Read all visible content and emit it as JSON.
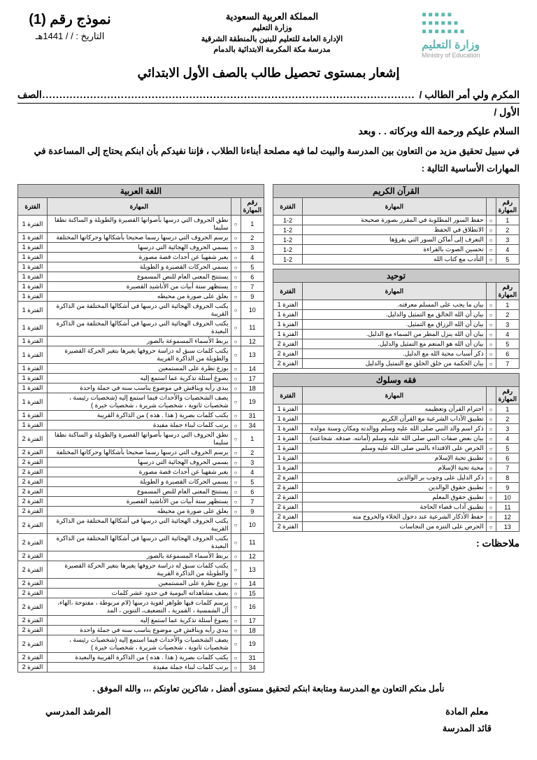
{
  "header": {
    "kingdom": "المملكة العربية السعودية",
    "ministry": "وزارة التعليم",
    "admin": "الإدارة العامة للتعليم للبنين بالمنطقة الشرقية",
    "school": "مدرسة مكة المكرمة الابتدائية بالدمام",
    "model": "نموذج رقم (1)",
    "date_label": "التاريخ :    /    / 1441هـ",
    "logo_ar": "وزارة التعليم",
    "logo_en": "Ministry of Education"
  },
  "title": "إشعار بمستوى تحصيل طالب بالصف الأول الابتدائي",
  "to_label": "المكرم ولي أمر الطالب /",
  "class_label": "الصف",
  "grade": "الأول /",
  "greeting": "السلام عليكم ورحمة الله وبركاته  .  .  وبعد",
  "intro": "في سبيل تحقيق مزيد من التعاون بين المدرسة والبيت لما فيه مصلحة أبناءنا الطلاب ، فإننا نفيدكم بأن ابنكم يحتاج إلى المساعدة في المهارات الأساسية التالية :",
  "col_headers": {
    "num": "رقم المهارة",
    "skill": "المهارة",
    "period": "الفترة"
  },
  "sections": {
    "quran": {
      "title": "القرآن الكريم",
      "rows": [
        {
          "n": "1",
          "s": "حفظ السور المطلوبة في المقرر بصورة صحيحة",
          "p": "1-2"
        },
        {
          "n": "2",
          "s": "الانطلاق في الحفظ",
          "p": "1-2"
        },
        {
          "n": "3",
          "s": "التعرف إلى أماكن السور التي يقرؤها",
          "p": "1-2"
        },
        {
          "n": "4",
          "s": "تحسين الصوت بالقراءة",
          "p": "1-2"
        },
        {
          "n": "5",
          "s": "التأدب مع كتاب الله",
          "p": "1-2"
        }
      ]
    },
    "tawheed": {
      "title": "توحيد",
      "rows": [
        {
          "n": "1",
          "s": "بيان ما يجب على المسلم معرفته.",
          "p": "الفترة 1"
        },
        {
          "n": "2",
          "s": "بيان أن الله الخالق مع التمثيل والدليل.",
          "p": "الفترة 1"
        },
        {
          "n": "3",
          "s": "بيان أن الله الرزاق مع التمثيل.",
          "p": "الفترة 1"
        },
        {
          "n": "4",
          "s": "بيان أن الله ينزل المطر من السماء مع الدليل.",
          "p": "الفترة 1"
        },
        {
          "n": "5",
          "s": "بيان أن الله هو المنعم مع التمثيل والدليل.",
          "p": "الفترة 2"
        },
        {
          "n": "6",
          "s": "ذكر أسباب محبة الله مع الدليل.",
          "p": "الفترة 2"
        },
        {
          "n": "7",
          "s": "بيان الحكمة من خلق الخلق مع التمثيل والدليل",
          "p": "الفترة 2"
        }
      ]
    },
    "fiqh": {
      "title": "فقه وسلوك",
      "rows": [
        {
          "n": "1",
          "s": "احترام القرآن وتعظيمه",
          "p": "الفترة 1"
        },
        {
          "n": "2",
          "s": "تطبيق الآداب الشرعية مع القرآن الكريم",
          "p": "الفترة 1"
        },
        {
          "n": "3",
          "s": "ذكر اسم والد النبي صلى الله عليه وسلم ووالدته ومكان وسنة مولده",
          "p": "الفترة 1"
        },
        {
          "n": "4",
          "s": "بيان بعض صفات النبي صلى الله عليه وسلم (أمانته. صدقه. شجاعته)",
          "p": "الفترة 1"
        },
        {
          "n": "5",
          "s": "الحرص على الاقتداء بالنبي صلى الله عليه وسلم",
          "p": "الفترة 1"
        },
        {
          "n": "6",
          "s": "تطبيق تحية الإسلام",
          "p": "الفترة 1"
        },
        {
          "n": "7",
          "s": "محبة تحية الإسلام",
          "p": "الفترة 1"
        },
        {
          "n": "8",
          "s": "ذكر الدليل على وجوب بر الوالدين",
          "p": "الفترة 2"
        },
        {
          "n": "9",
          "s": "تطبيق حقوق الوالدين",
          "p": "الفترة 2"
        },
        {
          "n": "10",
          "s": "تطبيق حقوق المعلم",
          "p": "الفترة 2"
        },
        {
          "n": "11",
          "s": "تطبيق آداب قضاء الحاجة",
          "p": "الفترة 2"
        },
        {
          "n": "12",
          "s": "حفظ الأذكار الشرعية عند دخول الخلاء والخروج منه",
          "p": "الفترة 2"
        },
        {
          "n": "13",
          "s": "الحرص على التنزه من النجاسات",
          "p": "الفترة 2"
        }
      ]
    },
    "arabic": {
      "title": "اللغة العربية",
      "rows": [
        {
          "n": "1",
          "s": "نطق الحروف التي درسها بأصواتها القصيرة والطويلة و الساكنة نطقا سليما",
          "p": "الفترة 1"
        },
        {
          "n": "2",
          "s": "يرسم الحروف التي درسها رسما صحيحا بأشكالها وحركاتها المختلفة",
          "p": "الفترة 1"
        },
        {
          "n": "3",
          "s": "يسمي الحروف الهجائية التي درسها",
          "p": "الفترة 1"
        },
        {
          "n": "4",
          "s": "يعبر شفهيا عن أحداث قصة مصورة",
          "p": "الفترة 1"
        },
        {
          "n": "5",
          "s": "يسمي الحركات القصيرة و الطويلة",
          "p": "الفترة 1"
        },
        {
          "n": "6",
          "s": "يستنتج المعنى العام للنص المسموع",
          "p": "الفترة 1"
        },
        {
          "n": "7",
          "s": "يستظهر ستة  أبيات من الأناشيد القصيرة",
          "p": "الفترة 1"
        },
        {
          "n": "9",
          "s": "يعلق على صورة من محيطه",
          "p": "الفترة 1"
        },
        {
          "n": "10",
          "s": "يكتب الحروف الهجائية التي درسها في أشكالها المختلفة من الذاكرة القريبة",
          "p": "الفترة 1"
        },
        {
          "n": "11",
          "s": "يكتب الحروف الهجائية التي درسها في أشكالها المختلفة من الذاكرة البعيدة",
          "p": "الفترة 1"
        },
        {
          "n": "12",
          "s": "يربط الأسماء المسموعة بالصور",
          "p": "الفترة 1"
        },
        {
          "n": "13",
          "s": "يكتب كلمات سبق له دراسة حروفها يغيرها بتغير الحركة القصيرة والطويلة من الذاكرة القريبة",
          "p": "الفترة 1"
        },
        {
          "n": "14",
          "s": "يوزع نظرة على المستمعين",
          "p": "الفترة 1"
        },
        {
          "n": "17",
          "s": "يصوغ أسئلة تذكرية عما استمع إليه",
          "p": "الفترة 1"
        },
        {
          "n": "18",
          "s": "يبدي رأيه ويناقش في موضوع يناسب سنه في جملة واحدة",
          "p": "الفترة 1"
        },
        {
          "n": "19",
          "s": "يصف الشخصيات والأحداث فيما استمع إليه (شخصيات رئيسة ، شخصيات ثانوية ، شخصيات شريرة ، شخصيات خيرة )",
          "p": "الفترة 1"
        },
        {
          "n": "31",
          "s": "يكتب كلمات بصرية ( هذا . هذه ) من الذاكرة القريبة",
          "p": "الفترة 1"
        },
        {
          "n": "34",
          "s": "يرتب كلمات لبناء جملة مفيدة",
          "p": "الفترة 1"
        },
        {
          "n": "1",
          "s": "نطق الحروف التي درسها بأصواتها القصيرة والطويلة و الساكنة نطقا سليما",
          "p": "الفترة 2"
        },
        {
          "n": "2",
          "s": "يرسم الحروف التي درسها رسما صحيحا بأشكالها وحركاتها المختلفة",
          "p": "الفترة 2"
        },
        {
          "n": "3",
          "s": "يسمي الحروف الهجائية التي درسها",
          "p": "الفترة 2"
        },
        {
          "n": "4",
          "s": "يعبر شفهيا عن أحداث قصة مصورة",
          "p": "الفترة 2"
        },
        {
          "n": "5",
          "s": "يسمي الحركات القصيرة و الطويلة",
          "p": "الفترة 2"
        },
        {
          "n": "6",
          "s": "يستنتج المعنى العام للنص المسموع",
          "p": "الفترة 2"
        },
        {
          "n": "7",
          "s": "يستظهر ستة  أبيات من الأناشيد القصيرة",
          "p": "الفترة 2"
        },
        {
          "n": "9",
          "s": "يعلق على صورة من محيطه",
          "p": "الفترة 2"
        },
        {
          "n": "10",
          "s": "يكتب الحروف الهجائية التي درسها في أشكالها المختلفة من الذاكرة القريبة",
          "p": "الفترة 2"
        },
        {
          "n": "11",
          "s": "يكتب الحروف الهجائية التي درسها في أشكالها المختلفة من الذاكرة البعيدة",
          "p": "الفترة 2"
        },
        {
          "n": "12",
          "s": "يربط الأسماء المسموعة بالصور",
          "p": "الفترة 2"
        },
        {
          "n": "13",
          "s": "يكتب كلمات سبق له دراسة حروفها يغيرها بتغير الحركة القصيرة والطويلة من الذاكرة القريبة",
          "p": "الفترة 2"
        },
        {
          "n": "14",
          "s": "يوزع نظرة على المستمعين",
          "p": "الفترة 2"
        },
        {
          "n": "15",
          "s": "يصف مشاهداته اليومية في حدود عشر كلمات",
          "p": "الفترة 2"
        },
        {
          "n": "16",
          "s": "يرسم كلمات فيها ظواهر لغوية درسها (لام مربوطة ، مفتوحة ،الهاء، أل الشمسية ، القمرية ، التضعيف، التنوين ، المد",
          "p": "الفترة 2"
        },
        {
          "n": "17",
          "s": "يصوغ أسئلة تذكرية عما استمع إليه",
          "p": "الفترة 2"
        },
        {
          "n": "18",
          "s": "يبدي رأيه ويناقش في موضوع يناسب سنه في جملة واحدة",
          "p": "الفترة 2"
        },
        {
          "n": "19",
          "s": "يصف الشخصيات والأحداث فيما استمع إليه (شخصيات رئيسة ، شخصيات ثانوية ، شخصيات شريرة ، شخصيات خيرة )",
          "p": "الفترة 2"
        },
        {
          "n": "31",
          "s": "يكتب كلمات بصرية ( هذا . هذه ) من الذاكرة القريبة والبعيدة",
          "p": "الفترة 2"
        },
        {
          "n": "34",
          "s": "يرتب كلمات لبناء جملة مفيدة",
          "p": "الفترة 2"
        }
      ]
    }
  },
  "notes_label": "ملاحظات :",
  "footer_text": "نأمل منكم التعاون مع المدرسة ومتابعة ابنكم لتحقيق مستوى أفضل ، شاكرين تعاونكم ،،، والله الموفق .",
  "sign": {
    "teacher": "معلم المادة",
    "leader": "قائد المدرسة",
    "counselor": "المرشد المدرسي"
  }
}
